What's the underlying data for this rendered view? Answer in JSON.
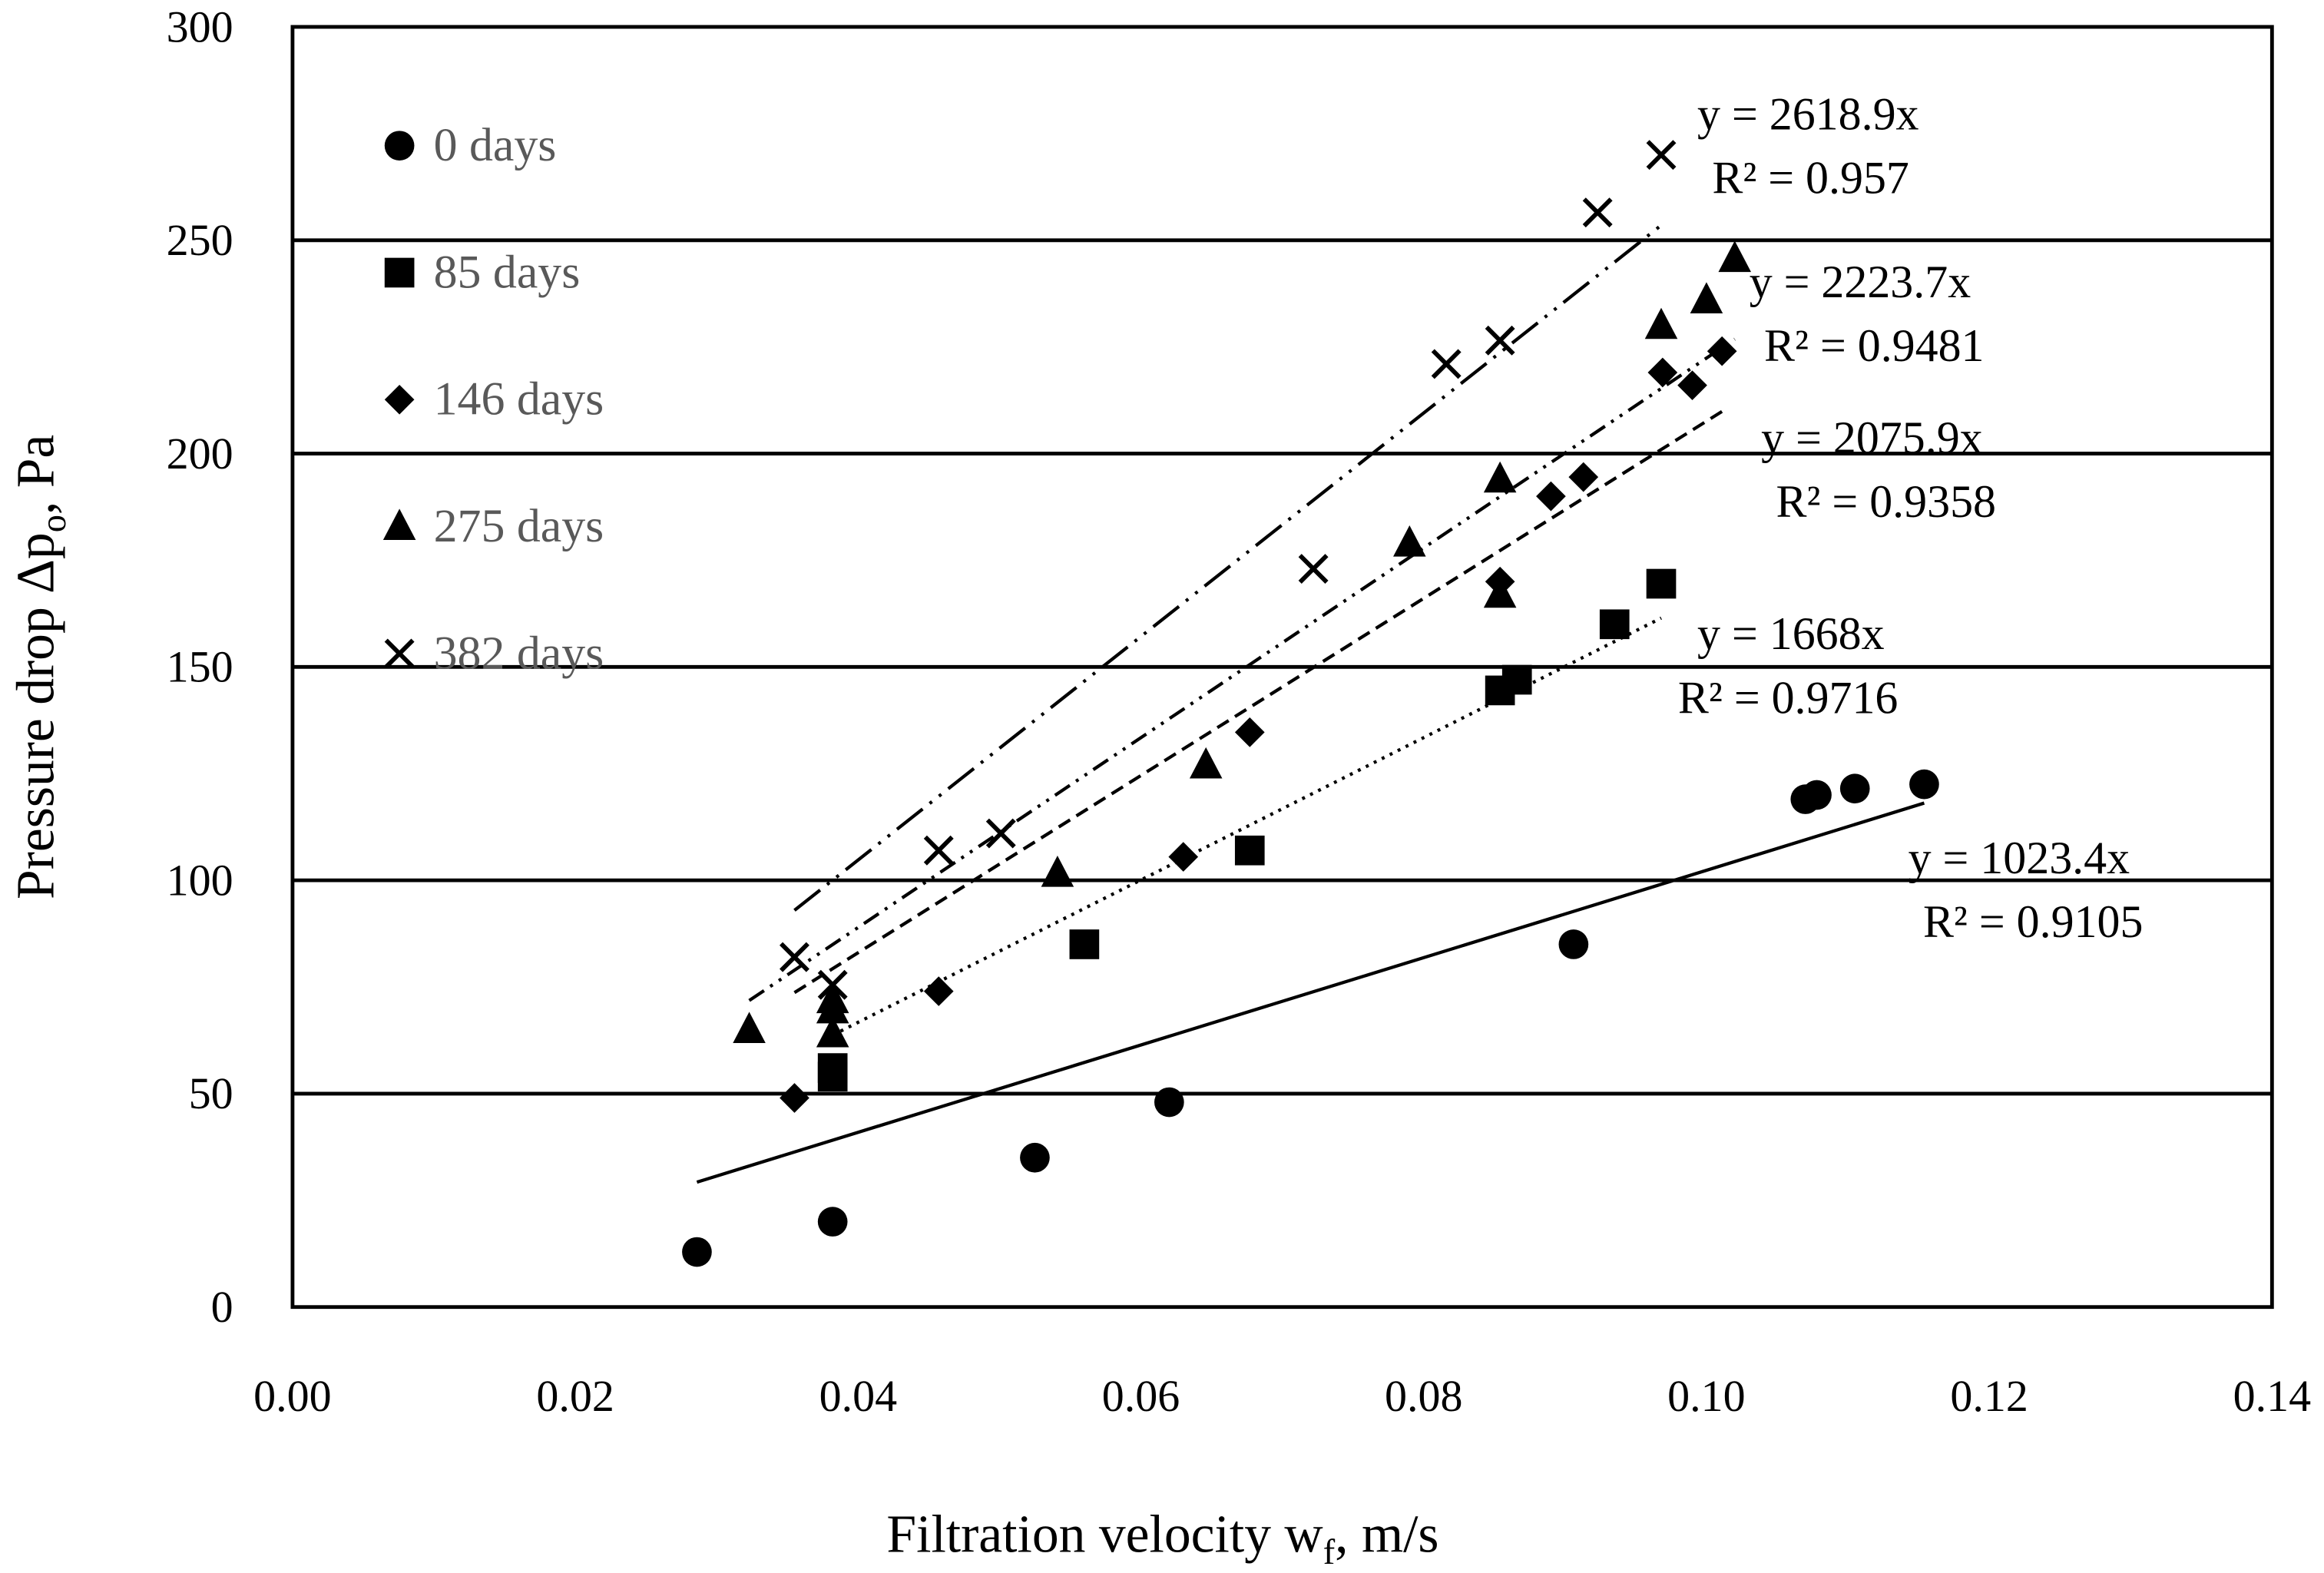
{
  "chart_data": {
    "type": "scatter",
    "title": "",
    "xlabel": "Filtration velocity w_f, m/s",
    "xlabel_main": "Filtration velocity w",
    "xlabel_sub": "f",
    "xlabel_tail": ", m/s",
    "ylabel": "Pressure drop Δp_o, Pa",
    "ylabel_main": "Pressure drop Δp",
    "ylabel_sub": "o",
    "ylabel_tail": ", Pa",
    "xlim": [
      0,
      0.14
    ],
    "ylim": [
      0,
      300
    ],
    "xticks": [
      "0.00",
      "0.02",
      "0.04",
      "0.06",
      "0.08",
      "0.10",
      "0.12",
      "0.14"
    ],
    "yticks": [
      "0",
      "50",
      "100",
      "150",
      "200",
      "250",
      "300"
    ],
    "grid": "horizontal",
    "legend_position": "top-left inside",
    "series": [
      {
        "name": "0 days",
        "marker": "circle",
        "trend": "solid",
        "slope": 1023.4,
        "equation": "y = 1023.4x",
        "r2": "R² = 0.9105",
        "x": [
          0.0286,
          0.0382,
          0.0525,
          0.062,
          0.0906,
          0.107,
          0.1078,
          0.1105,
          0.1154
        ],
        "y": [
          12.9,
          20,
          35,
          48,
          85,
          119,
          120,
          121.5,
          122.5
        ]
      },
      {
        "name": "85 days",
        "marker": "square",
        "trend": "dotted",
        "slope": 1668,
        "equation": "y = 1668x",
        "r2": "R² = 0.9716",
        "x": [
          0.0382,
          0.0382,
          0.056,
          0.0677,
          0.0854,
          0.0866,
          0.0935,
          0.0968
        ],
        "y": [
          54,
          56,
          85,
          107,
          144.5,
          147,
          160,
          169.5
        ]
      },
      {
        "name": "146 days",
        "marker": "diamond",
        "trend": "dashed",
        "slope": 2075.9,
        "equation": "y = 2075.9x",
        "r2": "R² = 0.9358",
        "x": [
          0.0355,
          0.0457,
          0.063,
          0.0677,
          0.0854,
          0.089,
          0.0913,
          0.0969,
          0.099,
          0.1011
        ],
        "y": [
          49,
          74,
          105.5,
          134.7,
          170,
          190,
          194.5,
          219,
          216,
          224
        ]
      },
      {
        "name": "275 days",
        "marker": "triangle",
        "trend": "dash-dot-dot",
        "slope": 2223.7,
        "equation": "y = 2223.7x",
        "r2": "R² = 0.9481",
        "x": [
          0.0323,
          0.0382,
          0.0382,
          0.0382,
          0.0541,
          0.0646,
          0.079,
          0.0854,
          0.0854,
          0.0968,
          0.1,
          0.102
        ],
        "y": [
          65,
          64,
          69.6,
          72,
          101.6,
          127,
          179,
          194,
          167,
          230,
          236,
          245.7
        ]
      },
      {
        "name": "382 days",
        "marker": "cross",
        "trend": "long-dash-dot-dot",
        "slope": 2618.9,
        "equation": "y = 2618.9x",
        "r2": "R² = 0.957",
        "x": [
          0.0355,
          0.0382,
          0.0457,
          0.0501,
          0.0722,
          0.0816,
          0.0854,
          0.0923,
          0.0968
        ],
        "y": [
          82,
          75.5,
          107,
          111,
          173,
          221,
          226.5,
          256.5,
          270
        ]
      }
    ]
  }
}
